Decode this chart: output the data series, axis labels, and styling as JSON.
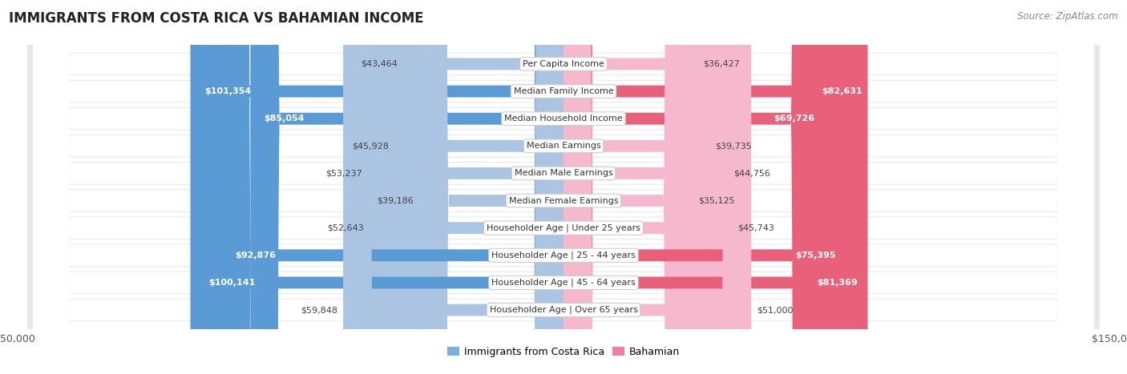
{
  "title": "IMMIGRANTS FROM COSTA RICA VS BAHAMIAN INCOME",
  "source": "Source: ZipAtlas.com",
  "categories": [
    "Per Capita Income",
    "Median Family Income",
    "Median Household Income",
    "Median Earnings",
    "Median Male Earnings",
    "Median Female Earnings",
    "Householder Age | Under 25 years",
    "Householder Age | 25 - 44 years",
    "Householder Age | 45 - 64 years",
    "Householder Age | Over 65 years"
  ],
  "costa_rica_values": [
    43464,
    101354,
    85054,
    45928,
    53237,
    39186,
    52643,
    92876,
    100141,
    59848
  ],
  "bahamian_values": [
    36427,
    82631,
    69726,
    39735,
    44756,
    35125,
    45743,
    75395,
    81369,
    51000
  ],
  "costa_rica_labels": [
    "$43,464",
    "$101,354",
    "$85,054",
    "$45,928",
    "$53,237",
    "$39,186",
    "$52,643",
    "$92,876",
    "$100,141",
    "$59,848"
  ],
  "bahamian_labels": [
    "$36,427",
    "$82,631",
    "$69,726",
    "$39,735",
    "$44,756",
    "$35,125",
    "$45,743",
    "$75,395",
    "$81,369",
    "$51,000"
  ],
  "cr_large_threshold": 70000,
  "bah_large_threshold": 60000,
  "costa_rica_color_light": "#aac4e2",
  "costa_rica_color_dark": "#5b9bd5",
  "bahamian_color_light": "#f5b8cc",
  "bahamian_color_dark": "#e8607a",
  "bg_color": "#ffffff",
  "row_bg_light": "#f4f4f6",
  "row_bg_dark": "#eaeaee",
  "max_value": 150000,
  "legend_cr": "Immigrants from Costa Rica",
  "legend_bah": "Bahamian",
  "legend_cr_color": "#7ab0de",
  "legend_bah_color": "#f08099"
}
